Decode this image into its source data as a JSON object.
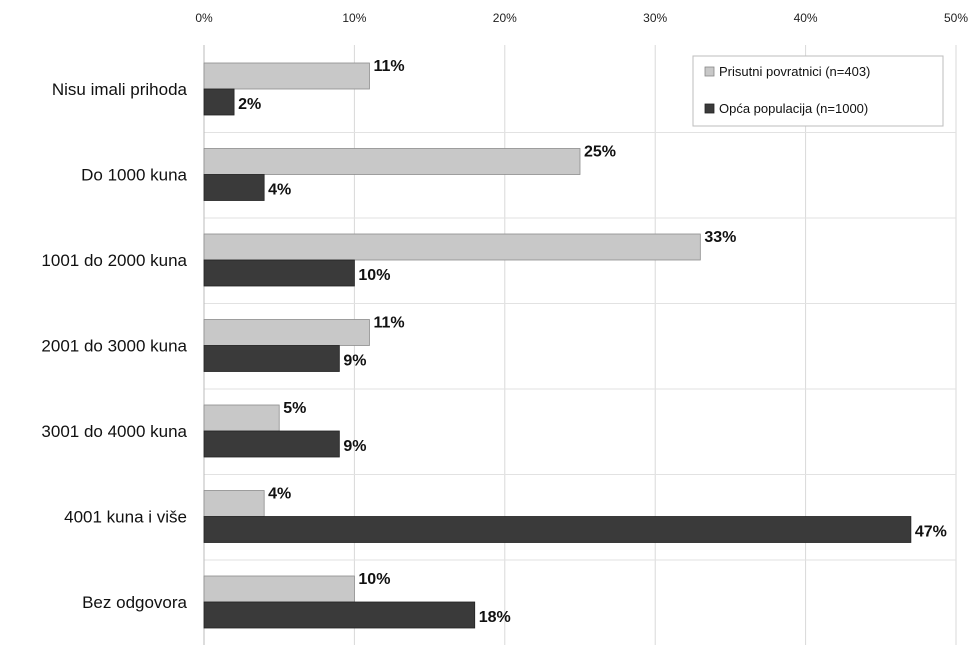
{
  "chart_data": {
    "type": "bar",
    "orientation": "horizontal",
    "xlim": [
      0,
      50
    ],
    "x_ticks": [
      "0%",
      "10%",
      "20%",
      "30%",
      "40%",
      "50%"
    ],
    "x_axis_position": "top",
    "grid": true,
    "legend_position": "top-right",
    "categories": [
      "Nisu imali prihoda",
      "Do 1000 kuna",
      "1001 do 2000 kuna",
      "2001 do 3000 kuna",
      "3001 do 4000 kuna",
      "4001 kuna i više",
      "Bez odgovora"
    ],
    "series": [
      {
        "name": "Prisutni povratnici (n=403)",
        "color": "#c8c8c8",
        "values": [
          11,
          25,
          33,
          11,
          5,
          4,
          10
        ],
        "labels": [
          "11%",
          "25%",
          "33%",
          "11%",
          "5%",
          "4%",
          "10%"
        ]
      },
      {
        "name": "Opća populacija (n=1000)",
        "color": "#3a3a3a",
        "values": [
          2,
          4,
          10,
          9,
          9,
          47,
          18
        ],
        "labels": [
          "2%",
          "4%",
          "10%",
          "9%",
          "9%",
          "47%",
          "18%"
        ]
      }
    ]
  }
}
